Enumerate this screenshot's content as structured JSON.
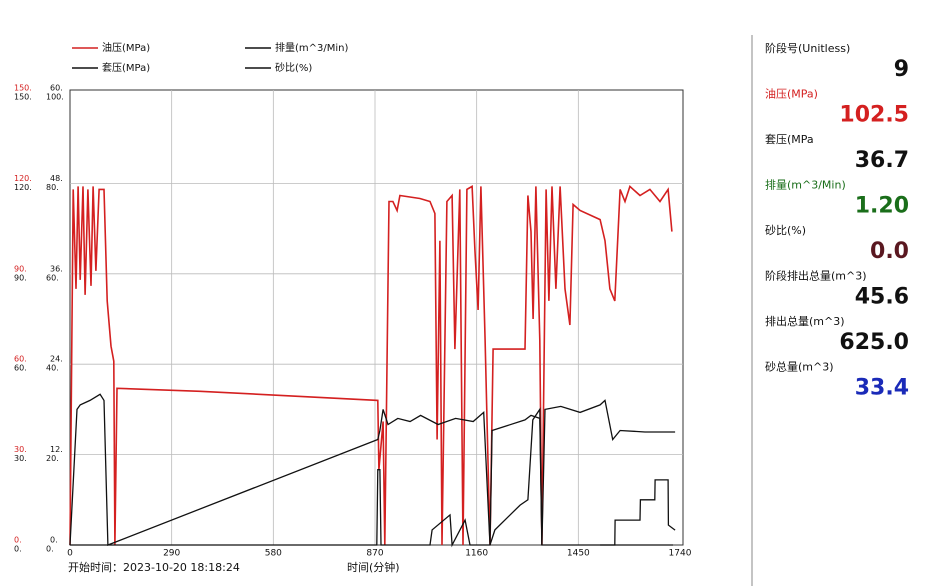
{
  "chart_data": {
    "type": "line",
    "start_time": "开始时间：2023-10-20 18:18:24",
    "x_label": "时间(分钟)",
    "xlim": [
      0,
      1740
    ],
    "xticks": [
      0,
      290,
      580,
      870,
      1160,
      1450,
      1740
    ],
    "ylim": [
      0,
      150
    ],
    "yticks": [
      {
        "value": 0,
        "label": "0."
      },
      {
        "value": 30,
        "label": "30."
      },
      {
        "value": 60,
        "label": "60."
      },
      {
        "value": 90,
        "label": "90."
      },
      {
        "value": 120,
        "label": "120."
      },
      {
        "value": 150,
        "label": "150."
      }
    ],
    "y2lim": [
      0,
      150
    ],
    "y2ticks": [
      {
        "value": 0,
        "label": "0."
      },
      {
        "value": 30,
        "label": "30."
      },
      {
        "value": 60,
        "label": "60."
      },
      {
        "value": 90,
        "label": "90."
      },
      {
        "value": 120,
        "label": "120."
      },
      {
        "value": 150,
        "label": "150."
      }
    ],
    "y3lim": [
      0,
      60
    ],
    "y3ticks": [
      {
        "value": 0,
        "label": "0."
      },
      {
        "value": 12,
        "label": "12."
      },
      {
        "value": 24,
        "label": "24."
      },
      {
        "value": 36,
        "label": "36."
      },
      {
        "value": 48,
        "label": "48."
      },
      {
        "value": 60,
        "label": "60."
      }
    ],
    "y4lim": [
      0,
      100
    ],
    "y4ticks": [
      {
        "value": 0,
        "label": "0."
      },
      {
        "value": 20,
        "label": "20."
      },
      {
        "value": 40,
        "label": "40."
      },
      {
        "value": 60,
        "label": "60."
      },
      {
        "value": 80,
        "label": "80."
      },
      {
        "value": 100,
        "label": "100."
      }
    ],
    "grid": true,
    "series": [
      {
        "name": "油压(MPa)",
        "color": "#d42020",
        "axis": "y",
        "x": [
          0,
          9,
          17,
          23,
          29,
          37,
          43,
          51,
          60,
          66,
          74,
          83,
          97,
          106,
          117,
          125,
          128,
          134,
          371,
          878,
          881,
          893,
          898,
          910,
          921,
          933,
          941,
          998,
          1027,
          1041,
          1047,
          1055,
          1061,
          1075,
          1090,
          1098,
          1112,
          1121,
          1132,
          1147,
          1155,
          1164,
          1172,
          1184,
          1198,
          1207,
          1298,
          1306,
          1315,
          1321,
          1329,
          1340,
          1346,
          1358,
          1366,
          1375,
          1386,
          1398,
          1412,
          1426,
          1435,
          1455,
          1512,
          1526,
          1540,
          1554,
          1569,
          1583,
          1597,
          1626,
          1654,
          1683,
          1706,
          1717
        ],
        "values": [
          0,
          118,
          85,
          119,
          88,
          119,
          83,
          118,
          86,
          119,
          91,
          118,
          118,
          81,
          66,
          61,
          0,
          52,
          51,
          48,
          25,
          41,
          0,
          114,
          114,
          111,
          116,
          115,
          114,
          110,
          35,
          101,
          0,
          114,
          116,
          65,
          118,
          0,
          118,
          119,
          98,
          78,
          119,
          68,
          0,
          65,
          65,
          116,
          104,
          75,
          119,
          68,
          0,
          118,
          81,
          119,
          85,
          119,
          85,
          73,
          113,
          111,
          108,
          101,
          85,
          81,
          118,
          114,
          119,
          116,
          118,
          114,
          118,
          104
        ]
      },
      {
        "name": "排量(m^3/Min)",
        "color": "#111111",
        "axis": "y3",
        "x": [
          0,
          875,
          878,
          884,
          887,
          1027,
          1033,
          1084,
          1090,
          1127,
          1141,
          1198,
          1212,
          1284,
          1306,
          1320,
          1340,
          1346,
          1720
        ],
        "values": [
          0,
          0,
          10,
          10,
          0,
          0,
          2,
          4,
          0,
          3.3,
          0,
          0,
          2,
          5.3,
          6,
          16.6,
          18,
          0,
          0
        ]
      },
      {
        "name": "套压(MPa)",
        "color": "#111111",
        "axis": "y2",
        "x": [
          0,
          20,
          29,
          57,
          86,
          97,
          108,
          878,
          884,
          893,
          907,
          935,
          970,
          1000,
          1050,
          1100,
          1150,
          1180,
          1198,
          1204,
          1298,
          1315,
          1340,
          1346,
          1355,
          1400,
          1455,
          1512,
          1526,
          1548,
          1569,
          1640,
          1726
        ],
        "values": [
          0,
          45,
          46.5,
          48,
          50,
          48,
          0,
          35,
          38,
          45,
          40,
          42,
          41,
          43,
          40,
          42,
          41,
          44,
          0,
          38,
          41.5,
          43,
          42,
          0,
          45,
          46,
          44,
          46.5,
          48,
          35,
          38,
          37.5,
          37.5
        ]
      },
      {
        "name": "砂比(%)",
        "color": "#111111",
        "axis": "y4",
        "x": [
          1512,
          1554,
          1555,
          1626,
          1627,
          1668,
          1669,
          1706,
          1707,
          1726
        ],
        "values": [
          0,
          0,
          5.5,
          5.5,
          10,
          10,
          14.4,
          14.4,
          4.4,
          3.3
        ]
      }
    ],
    "panel": [
      {
        "label": "阶段号(Unitless)",
        "value": "9",
        "label_color": "#111111",
        "color": "#111111"
      },
      {
        "label": "油压(MPa)",
        "value": "102.5",
        "label_color": "#d42020",
        "color": "#d42020"
      },
      {
        "label": "套压(MPa",
        "value": "36.7",
        "label_color": "#111111",
        "color": "#111111"
      },
      {
        "label": "排量(m^3/Min)",
        "value": "1.20",
        "label_color": "#1a6e1a",
        "color": "#1a6e1a"
      },
      {
        "label": "砂比(%)",
        "value": "0.0",
        "label_color": "#111111",
        "color": "#5a1820"
      },
      {
        "label": "阶段排出总量(m^3)",
        "value": "45.6",
        "label_color": "#111111",
        "color": "#111111"
      },
      {
        "label": "排出总量(m^3)",
        "value": "625.0",
        "label_color": "#111111",
        "color": "#111111"
      },
      {
        "label": "砂总量(m^3)",
        "value": "33.4",
        "label_color": "#111111",
        "color": "#1a2ab8"
      }
    ]
  }
}
